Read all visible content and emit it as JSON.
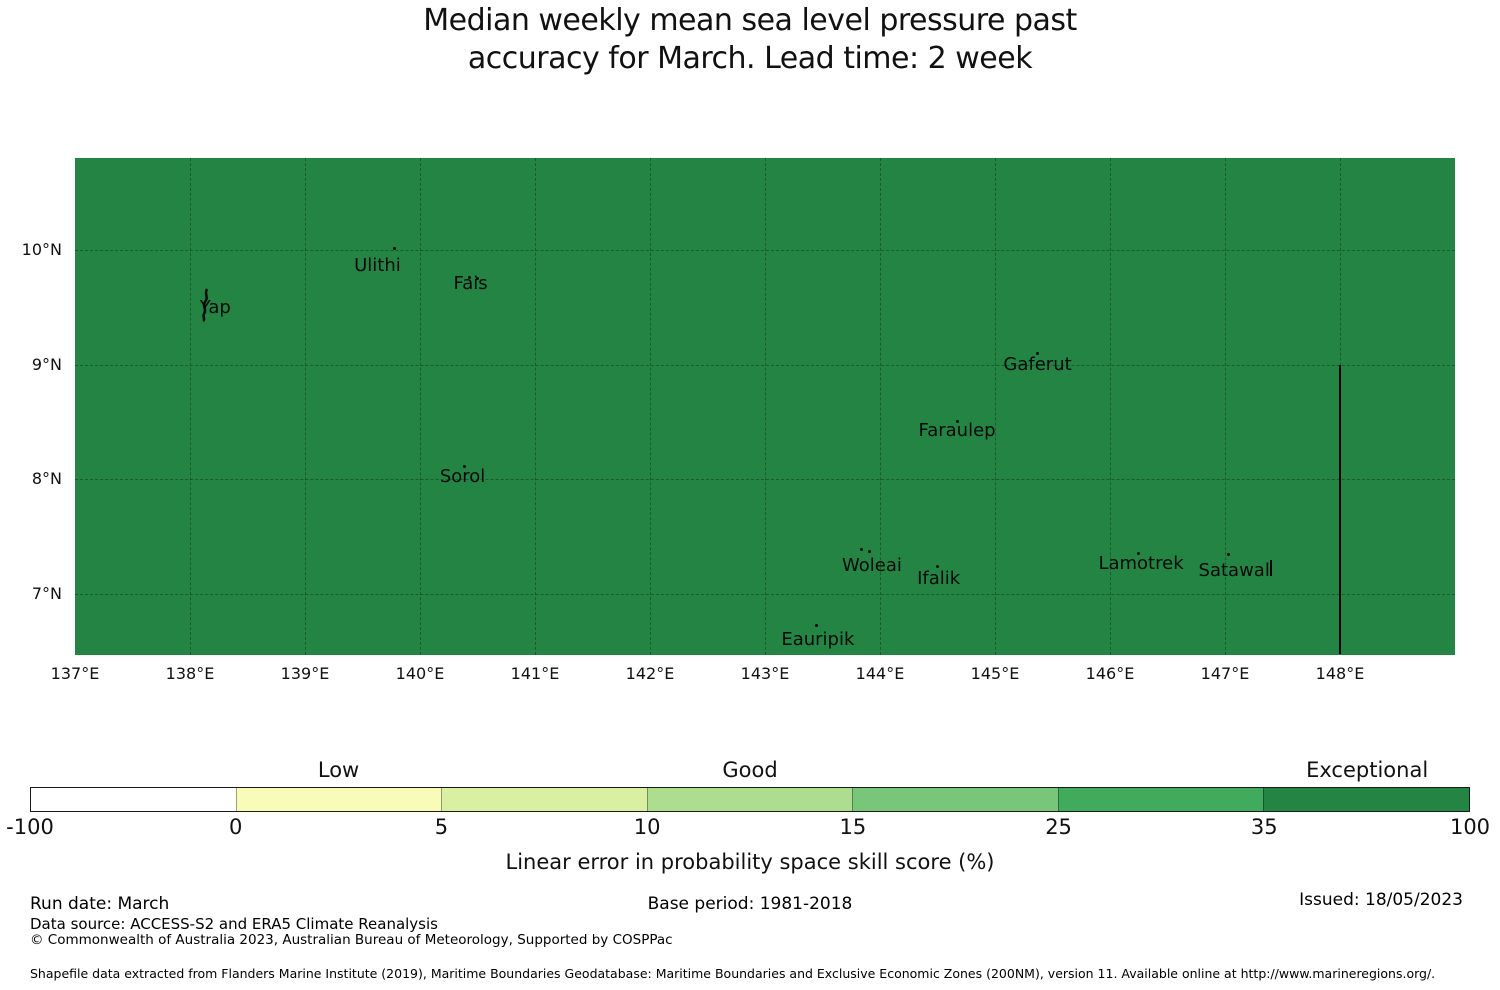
{
  "chart_data": {
    "type": "heatmap",
    "subtype": "geographic choropleth (skill score map)",
    "title_lines": [
      "Median weekly mean sea level pressure past",
      "accuracy for March. Lead time: 2 week"
    ],
    "title": "Median weekly mean sea level pressure past accuracy for March. Lead time: 2 week",
    "x_axis": {
      "ticks": [
        {
          "label": "137°E",
          "lon": 137
        },
        {
          "label": "138°E",
          "lon": 138
        },
        {
          "label": "139°E",
          "lon": 139
        },
        {
          "label": "140°E",
          "lon": 140
        },
        {
          "label": "141°E",
          "lon": 141
        },
        {
          "label": "142°E",
          "lon": 142
        },
        {
          "label": "143°E",
          "lon": 143
        },
        {
          "label": "144°E",
          "lon": 144
        },
        {
          "label": "145°E",
          "lon": 145
        },
        {
          "label": "146°E",
          "lon": 146
        },
        {
          "label": "147°E",
          "lon": 147
        },
        {
          "label": "148°E",
          "lon": 148
        }
      ],
      "range_lon": [
        137.0,
        149.0
      ]
    },
    "y_axis": {
      "ticks": [
        {
          "label": "10°N",
          "lat": 10
        },
        {
          "label": "9°N",
          "lat": 9
        },
        {
          "label": "8°N",
          "lat": 8
        },
        {
          "label": "7°N",
          "lat": 7
        }
      ],
      "range_lat": [
        6.47,
        10.8
      ]
    },
    "fill": {
      "color": "#238443",
      "value_bin": "35-100",
      "category": "Exceptional",
      "note": "entire mapped region shaded in the 35-100 skill bin"
    },
    "grid": true,
    "islands": [
      {
        "name": "Yap",
        "marker": "shape",
        "shape_center": {
          "lon": 138.135,
          "lat": 9.52
        },
        "label": {
          "lon": 138.22,
          "lat": 9.49
        }
      },
      {
        "name": "Ulithi",
        "dots": [
          [
            139.78,
            10.01
          ]
        ],
        "label": {
          "lon": 139.63,
          "lat": 9.86
        }
      },
      {
        "name": "Fais",
        "dots": [
          [
            140.43,
            9.76
          ],
          [
            140.5,
            9.75
          ]
        ],
        "label": {
          "lon": 140.44,
          "lat": 9.7
        }
      },
      {
        "name": "Sorol",
        "dots": [
          [
            140.39,
            8.11
          ]
        ],
        "label": {
          "lon": 140.37,
          "lat": 8.02
        }
      },
      {
        "name": "Gaferut",
        "dots": [
          [
            145.37,
            9.1
          ]
        ],
        "label": {
          "lon": 145.37,
          "lat": 9.0
        }
      },
      {
        "name": "Faraulep",
        "dots": [
          [
            144.67,
            8.5
          ]
        ],
        "label": {
          "lon": 144.67,
          "lat": 8.42
        }
      },
      {
        "name": "Woleai",
        "dots": [
          [
            143.84,
            7.38
          ],
          [
            143.91,
            7.37
          ]
        ],
        "label": {
          "lon": 143.93,
          "lat": 7.24
        }
      },
      {
        "name": "Ifalik",
        "dots": [
          [
            144.5,
            7.24
          ]
        ],
        "label": {
          "lon": 144.51,
          "lat": 7.13
        }
      },
      {
        "name": "Lamotrek",
        "dots": [
          [
            146.25,
            7.35
          ]
        ],
        "label": {
          "lon": 146.27,
          "lat": 7.26
        }
      },
      {
        "name": "Satawal",
        "dots": [
          [
            147.03,
            7.34
          ]
        ],
        "label": {
          "lon": 147.08,
          "lat": 7.2
        }
      },
      {
        "name": "Eauripik",
        "dots": [
          [
            143.45,
            6.72
          ]
        ],
        "label": {
          "lon": 143.46,
          "lat": 6.59
        }
      }
    ],
    "boundaries": [
      {
        "lon": 148.0,
        "lat_start": 9.0,
        "lat_end": 6.47
      },
      {
        "lon": 147.4,
        "lat_start": 7.29,
        "lat_end": 7.15
      }
    ],
    "colorbar": {
      "bounds": [
        -100,
        0,
        5,
        10,
        15,
        25,
        35,
        100
      ],
      "tick_labels": [
        "-100",
        "0",
        "5",
        "10",
        "15",
        "25",
        "35",
        "100"
      ],
      "colors": [
        "#ffffff",
        "#f7fcb9",
        "#d9f0a3",
        "#addd8e",
        "#78c679",
        "#41ab5d",
        "#238443"
      ],
      "categories": [
        {
          "label": "Low",
          "segment": 1
        },
        {
          "label": "Good",
          "segment": 3
        },
        {
          "label": "Exceptional",
          "segment": 6
        }
      ],
      "axis_label": "Linear error in probability space skill score (%)"
    }
  },
  "footer": {
    "run_date": "Run date: March",
    "base_period": "Base period: 1981-2018",
    "issued": "Issued: 18/05/2023",
    "data_source": "Data source: ACCESS-S2 and ERA5 Climate Reanalysis",
    "copyright": "© Commonwealth of Australia 2023, Australian Bureau of Meteorology, Supported by COSPPac",
    "shapefile_note": "Shapefile data extracted from Flanders Marine Institute (2019), Maritime Boundaries Geodatabase: Maritime Boundaries and Exclusive Economic Zones (200NM), version 11. Available online at http://www.marineregions.org/."
  }
}
